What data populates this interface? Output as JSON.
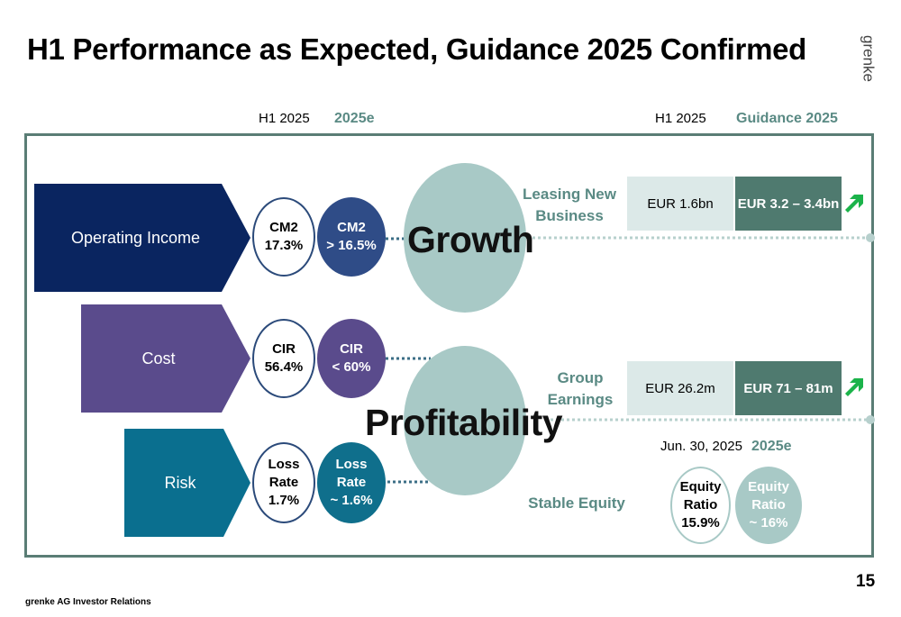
{
  "title": "H1 Performance as Expected, Guidance 2025 Confirmed",
  "logo": "grenke",
  "headers": {
    "h1_left": "H1 2025",
    "e_left": "2025e",
    "h1_right": "H1 2025",
    "guidance_right": "Guidance 2025",
    "date_equity": "Jun. 30, 2025",
    "e_equity": "2025e"
  },
  "drivers": [
    {
      "label": "Operating Income",
      "color": "#0a2560",
      "actual": {
        "line1": "CM2",
        "line2": "17.3%"
      },
      "expected": {
        "line1": "CM2",
        "line2": "> 16.5%",
        "color": "#2f4c87"
      }
    },
    {
      "label": "Cost",
      "color": "#5a4b8c",
      "actual": {
        "line1": "CIR",
        "line2": "56.4%"
      },
      "expected": {
        "line1": "CIR",
        "line2": "< 60%",
        "color": "#5a4b8c"
      }
    },
    {
      "label": "Risk",
      "color": "#0a6f8f",
      "actual": {
        "line1": "Loss",
        "line2": "Rate",
        "line3": "1.7%"
      },
      "expected": {
        "line1": "Loss",
        "line2": "Rate",
        "line3": "~ 1.6%",
        "color": "#0f6f8c"
      }
    }
  ],
  "pillars": {
    "growth": "Growth",
    "profitability": "Profitability"
  },
  "kpis": [
    {
      "label_line1": "Leasing New",
      "label_line2": "Business",
      "actual": "EUR 1.6bn",
      "guidance": "EUR 3.2 – 3.4bn",
      "trend_icon": "arrow-up-right"
    },
    {
      "label_line1": "Group",
      "label_line2": "Earnings",
      "actual": "EUR 26.2m",
      "guidance": "EUR 71 – 81m",
      "trend_icon": "arrow-up-right"
    }
  ],
  "equity": {
    "label": "Stable Equity",
    "actual": {
      "line1": "Equity",
      "line2": "Ratio",
      "line3": "15.9%"
    },
    "expected": {
      "line1": "Equity",
      "line2": "Ratio",
      "line3": "~ 16%"
    }
  },
  "colors": {
    "frame": "#5a7d75",
    "accent_teal": "#5a8a84",
    "pillar_circle": "#a8c9c6",
    "box_light": "#dce9e8",
    "box_dark": "#4f7a6f",
    "trend_green": "#1bb34a"
  },
  "page_number": "15",
  "footer": "grenke AG Investor Relations"
}
